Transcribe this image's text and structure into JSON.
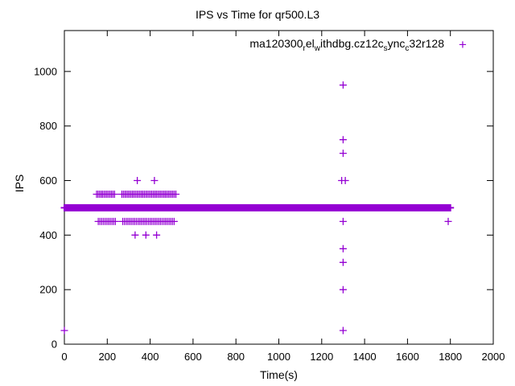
{
  "title": "IPS vs Time for qr500.L3",
  "chart_data": {
    "type": "scatter",
    "title": "IPS vs Time for qr500.L3",
    "xlabel": "Time(s)",
    "ylabel": "IPS",
    "xlim": [
      0,
      2000
    ],
    "ylim": [
      0,
      1150
    ],
    "xticks": [
      0,
      200,
      400,
      600,
      800,
      1000,
      1200,
      1400,
      1600,
      1800,
      2000
    ],
    "yticks": [
      0,
      200,
      400,
      600,
      800,
      1000
    ],
    "grid": false,
    "marker": "plus",
    "legend_position": "top-right-inside",
    "series": [
      {
        "name_segments": [
          {
            "t": "ma120300"
          },
          {
            "t": "r",
            "sub": true
          },
          {
            "t": "el"
          },
          {
            "t": "w",
            "sub": true
          },
          {
            "t": "ithdbg.cz12c"
          },
          {
            "t": "s",
            "sub": true
          },
          {
            "t": "ync"
          },
          {
            "t": "c",
            "sub": true
          },
          {
            "t": "32r128"
          }
        ],
        "color": "#9400d3",
        "bands": [
          {
            "y": 500,
            "x0": 0,
            "x1": 1800,
            "step": 3,
            "stroke": 2
          },
          {
            "y": 550,
            "x0": 150,
            "x1": 236,
            "step": 7,
            "stroke": 1.2
          },
          {
            "y": 550,
            "x0": 268,
            "x1": 520,
            "step": 7,
            "stroke": 1.2
          },
          {
            "y": 450,
            "x0": 158,
            "x1": 240,
            "step": 8,
            "stroke": 1.2
          },
          {
            "y": 450,
            "x0": 272,
            "x1": 512,
            "step": 8,
            "stroke": 1.2
          }
        ],
        "points": [
          [
            0,
            50
          ],
          [
            340,
            600
          ],
          [
            420,
            600
          ],
          [
            330,
            400
          ],
          [
            380,
            400
          ],
          [
            430,
            400
          ],
          [
            1300,
            950
          ],
          [
            1300,
            750
          ],
          [
            1300,
            700
          ],
          [
            1293,
            600
          ],
          [
            1310,
            600
          ],
          [
            1300,
            450
          ],
          [
            1300,
            350
          ],
          [
            1300,
            300
          ],
          [
            1300,
            200
          ],
          [
            1300,
            50
          ],
          [
            1790,
            450
          ]
        ]
      }
    ]
  }
}
